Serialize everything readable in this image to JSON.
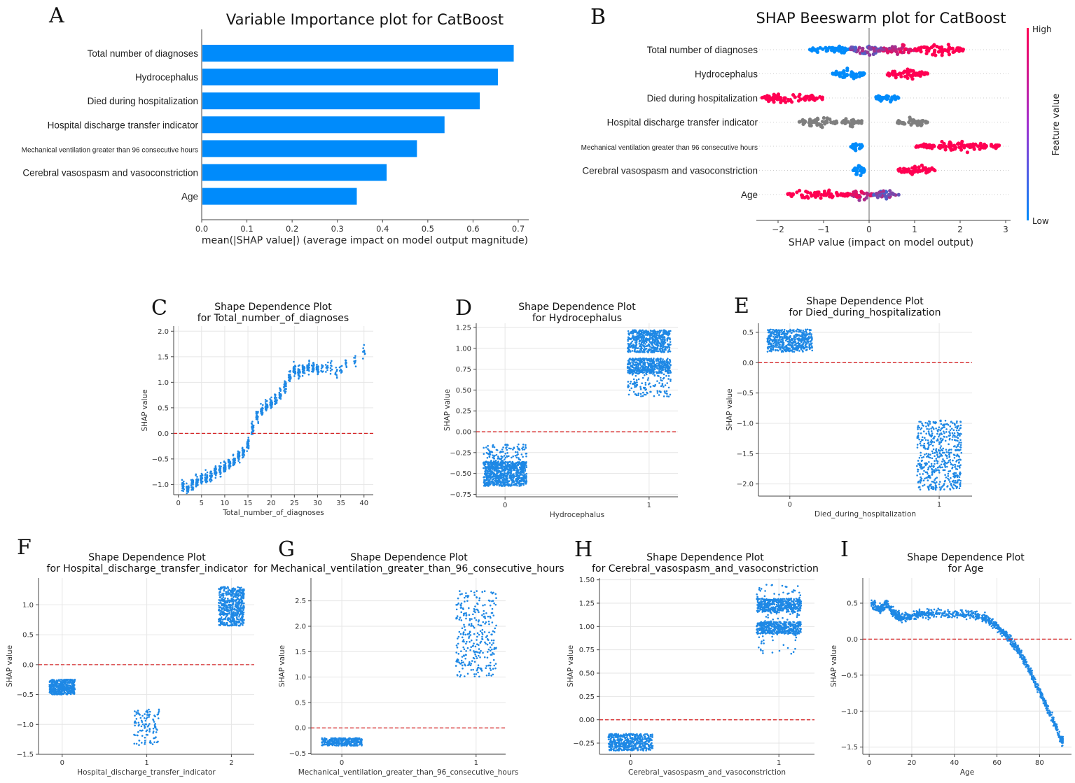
{
  "colors": {
    "bar": "#008bfb",
    "low": "#008bfb",
    "high": "#ff0052",
    "gray": "#7f7f7f",
    "reference_line": "#d62728",
    "points": "#1e88e5"
  },
  "chart_data": [
    {
      "panel": "A",
      "type": "bar",
      "title": "Variable Importance plot for CatBoost",
      "categories": [
        "Total number of diagnoses",
        "Hydrocephalus",
        "Died during hospitalization",
        "Hospital discharge transfer indicator",
        "Mechanical ventilation greater than 96 consecutive hours",
        "Cerebral vasospasm and vasoconstriction",
        "Age"
      ],
      "values": [
        0.69,
        0.655,
        0.615,
        0.537,
        0.476,
        0.409,
        0.343
      ],
      "xlabel": "mean(|SHAP value|) (average impact on model output magnitude)",
      "xlim": [
        0,
        0.72
      ],
      "xticks": [
        "0.0",
        "0.1",
        "0.2",
        "0.3",
        "0.4",
        "0.5",
        "0.6",
        "0.7"
      ]
    },
    {
      "panel": "B",
      "type": "scatter",
      "title": "SHAP Beeswarm plot for CatBoost",
      "xlabel": "SHAP value (impact on model output)",
      "xlim": [
        -2.5,
        3.1
      ],
      "xticks": [
        "−2",
        "−1",
        "0",
        "1",
        "2",
        "3"
      ],
      "colorbar": {
        "label": "Feature value",
        "high": "High",
        "low": "Low"
      },
      "rows": [
        {
          "feature": "Total number of diagnoses",
          "clusters": [
            {
              "range": [
                -1.3,
                -0.45
              ],
              "color": "low"
            },
            {
              "range": [
                -0.45,
                0.3
              ],
              "color": "mixed"
            },
            {
              "range": [
                0.3,
                1.0
              ],
              "color": "mixed-high"
            },
            {
              "range": [
                1.0,
                2.1
              ],
              "color": "high"
            }
          ]
        },
        {
          "feature": "Hydrocephalus",
          "clusters": [
            {
              "range": [
                -0.8,
                -0.1
              ],
              "color": "low"
            },
            {
              "range": [
                0.4,
                1.3
              ],
              "color": "high"
            }
          ]
        },
        {
          "feature": "Died during hospitalization",
          "clusters": [
            {
              "range": [
                -2.4,
                -1.0
              ],
              "color": "high"
            },
            {
              "range": [
                0.15,
                0.65
              ],
              "color": "low"
            }
          ]
        },
        {
          "feature": "Hospital discharge transfer indicator",
          "clusters": [
            {
              "range": [
                -1.55,
                -0.7
              ],
              "color": "gray"
            },
            {
              "range": [
                -0.6,
                -0.15
              ],
              "color": "gray"
            },
            {
              "range": [
                0.6,
                1.3
              ],
              "color": "gray"
            }
          ]
        },
        {
          "feature": "Mechanical ventilation greater than 96 consecutive hours",
          "clusters": [
            {
              "range": [
                -0.4,
                -0.15
              ],
              "color": "low"
            },
            {
              "range": [
                1.0,
                2.9
              ],
              "color": "high"
            }
          ]
        },
        {
          "feature": "Cerebral vasospasm and vasoconstriction",
          "clusters": [
            {
              "range": [
                -0.35,
                -0.1
              ],
              "color": "low"
            },
            {
              "range": [
                0.6,
                1.45
              ],
              "color": "high"
            }
          ]
        },
        {
          "feature": "Age",
          "clusters": [
            {
              "range": [
                -1.8,
                -0.4
              ],
              "color": "high"
            },
            {
              "range": [
                -0.4,
                0.1
              ],
              "color": "mixed-high"
            },
            {
              "range": [
                0.1,
                0.65
              ],
              "color": "mixed"
            }
          ]
        }
      ]
    },
    {
      "panel": "C",
      "type": "scatter",
      "title": [
        "Shape Dependence Plot",
        "for Total_number_of_diagnoses"
      ],
      "xlabel": "Total_number_of_diagnoses",
      "ylabel": "SHAP value",
      "xlim": [
        -1,
        42
      ],
      "ylim": [
        -1.2,
        2.1
      ],
      "xticks": [
        "0",
        "5",
        "10",
        "15",
        "20",
        "25",
        "30",
        "35",
        "40"
      ],
      "yticks": [
        "−1.0",
        "−0.5",
        "0.0",
        "0.5",
        "1.0",
        "1.5",
        "2.0"
      ],
      "reference_line": 0,
      "trend": [
        [
          1,
          -1.05
        ],
        [
          2,
          -1.05
        ],
        [
          3,
          -1.0
        ],
        [
          4,
          -0.95
        ],
        [
          5,
          -0.9
        ],
        [
          6,
          -0.87
        ],
        [
          7,
          -0.83
        ],
        [
          8,
          -0.75
        ],
        [
          9,
          -0.7
        ],
        [
          10,
          -0.65
        ],
        [
          11,
          -0.6
        ],
        [
          12,
          -0.55
        ],
        [
          13,
          -0.48
        ],
        [
          14,
          -0.38
        ],
        [
          15,
          -0.2
        ],
        [
          16,
          0.1
        ],
        [
          17,
          0.32
        ],
        [
          18,
          0.45
        ],
        [
          19,
          0.52
        ],
        [
          20,
          0.6
        ],
        [
          21,
          0.66
        ],
        [
          22,
          0.76
        ],
        [
          23,
          0.92
        ],
        [
          24,
          1.1
        ],
        [
          25,
          1.25
        ],
        [
          26,
          1.2
        ],
        [
          27,
          1.25
        ],
        [
          28,
          1.3
        ],
        [
          29,
          1.3
        ],
        [
          30,
          1.25
        ],
        [
          31,
          1.25
        ],
        [
          32,
          1.3
        ],
        [
          33,
          1.3
        ],
        [
          34,
          1.2
        ],
        [
          35,
          1.25
        ],
        [
          36,
          1.35
        ],
        [
          38,
          1.4
        ],
        [
          40,
          1.6
        ]
      ]
    },
    {
      "panel": "D",
      "type": "scatter",
      "title": [
        "Shape Dependence Plot",
        "for Hydrocephalus"
      ],
      "xlabel": "Hydrocephalus",
      "ylabel": "SHAP value",
      "xlim": [
        -0.2,
        1.2
      ],
      "ylim": [
        -0.78,
        1.3
      ],
      "xticks": [
        "0",
        "1"
      ],
      "yticks": [
        "−0.75",
        "−0.50",
        "−0.25",
        "0.00",
        "0.25",
        "0.50",
        "0.75",
        "1.00",
        "1.25"
      ],
      "reference_line": 0,
      "clusters": [
        {
          "x": 0,
          "y": [
            -0.65,
            -0.45
          ],
          "density": "high"
        },
        {
          "x": 0,
          "y": [
            -0.45,
            -0.36
          ],
          "density": "high"
        },
        {
          "x": 0,
          "y": [
            -0.36,
            -0.15
          ],
          "density": "low"
        },
        {
          "x": 1,
          "y": [
            0.95,
            1.22
          ],
          "density": "high"
        },
        {
          "x": 1,
          "y": [
            0.7,
            0.88
          ],
          "density": "high"
        },
        {
          "x": 1,
          "y": [
            0.42,
            0.7
          ],
          "density": "low"
        }
      ]
    },
    {
      "panel": "E",
      "type": "scatter",
      "title": [
        "Shape Dependence Plot",
        "for Died_during_hospitalization"
      ],
      "xlabel": "Died_during_hospitalization",
      "ylabel": "SHAP value",
      "xlim": [
        -0.21,
        1.22
      ],
      "ylim": [
        -2.2,
        0.65
      ],
      "xticks": [
        "0",
        "1"
      ],
      "yticks": [
        "−2.0",
        "−1.5",
        "−1.0",
        "−0.5",
        "0.0",
        "0.5"
      ],
      "reference_line": 0,
      "clusters": [
        {
          "x": 0,
          "y": [
            0.18,
            0.55
          ],
          "density": "high"
        },
        {
          "x": 1,
          "y": [
            -2.1,
            -0.95
          ],
          "density": "high"
        }
      ]
    },
    {
      "panel": "F",
      "type": "scatter",
      "title": [
        "Shape Dependence Plot",
        "for Hospital_discharge_transfer_indicator"
      ],
      "xlabel": "Hospital_discharge_transfer_indicator",
      "ylabel": "SHAP value",
      "xlim": [
        -0.28,
        2.27
      ],
      "ylim": [
        -1.5,
        1.45
      ],
      "xticks": [
        "0",
        "1",
        "2"
      ],
      "yticks": [
        "−1.5",
        "−1.0",
        "−0.5",
        "0.0",
        "0.5",
        "1.0"
      ],
      "reference_line": 0,
      "clusters": [
        {
          "x": 0,
          "y": [
            -0.5,
            -0.25
          ],
          "density": "high"
        },
        {
          "x": 1,
          "y": [
            -1.35,
            -0.75
          ],
          "density": "low"
        },
        {
          "x": 2,
          "y": [
            0.65,
            1.3
          ],
          "density": "high"
        }
      ]
    },
    {
      "panel": "G",
      "type": "scatter",
      "title": [
        "Shape Dependence Plot",
        "for Mechanical_ventilation_greater_than_96_consecutive_hours"
      ],
      "xlabel": "Mechanical_ventilation_greater_than_96_consecutive_hours",
      "ylabel": "SHAP value",
      "xlim": [
        -0.23,
        1.22
      ],
      "ylim": [
        -0.52,
        2.95
      ],
      "xticks": [
        "0",
        "1"
      ],
      "yticks": [
        "−0.5",
        "0.0",
        "0.5",
        "1.0",
        "1.5",
        "2.0",
        "2.5"
      ],
      "reference_line": 0,
      "clusters": [
        {
          "x": 0,
          "y": [
            -0.35,
            -0.2
          ],
          "density": "high"
        },
        {
          "x": 1,
          "y": [
            1.0,
            2.7
          ],
          "density": "medium"
        }
      ]
    },
    {
      "panel": "H",
      "type": "scatter",
      "title": [
        "Shape Dependence Plot",
        "for Cerebral_vasospasm_and_vasoconstriction"
      ],
      "xlabel": "Cerebral_vasospasm_and_vasoconstriction",
      "ylabel": "SHAP value",
      "xlim": [
        -0.21,
        1.24
      ],
      "ylim": [
        -0.37,
        1.52
      ],
      "xticks": [
        "0",
        "1"
      ],
      "yticks": [
        "−0.25",
        "0.00",
        "0.25",
        "0.50",
        "0.75",
        "1.00",
        "1.25",
        "1.50"
      ],
      "reference_line": 0,
      "clusters": [
        {
          "x": 0,
          "y": [
            -0.33,
            -0.15
          ],
          "density": "high"
        },
        {
          "x": 1,
          "y": [
            1.15,
            1.3
          ],
          "density": "high"
        },
        {
          "x": 1,
          "y": [
            0.92,
            1.05
          ],
          "density": "high"
        },
        {
          "x": 1,
          "y": [
            0.7,
            1.45
          ],
          "density": "low"
        }
      ]
    },
    {
      "panel": "I",
      "type": "scatter",
      "title": [
        "Shape Dependence Plot",
        "for Age"
      ],
      "xlabel": "Age",
      "ylabel": "SHAP value",
      "xlim": [
        -3,
        95
      ],
      "ylim": [
        -1.6,
        0.85
      ],
      "xticks": [
        "0",
        "20",
        "40",
        "60",
        "80"
      ],
      "yticks": [
        "−1.5",
        "−1.0",
        "−0.5",
        "0.0",
        "0.5"
      ],
      "reference_line": 0,
      "trend": [
        [
          1,
          0.5
        ],
        [
          5,
          0.42
        ],
        [
          8,
          0.5
        ],
        [
          12,
          0.35
        ],
        [
          15,
          0.3
        ],
        [
          20,
          0.32
        ],
        [
          25,
          0.35
        ],
        [
          30,
          0.36
        ],
        [
          40,
          0.35
        ],
        [
          48,
          0.34
        ],
        [
          54,
          0.3
        ],
        [
          58,
          0.22
        ],
        [
          62,
          0.12
        ],
        [
          66,
          0.0
        ],
        [
          70,
          -0.15
        ],
        [
          74,
          -0.35
        ],
        [
          78,
          -0.6
        ],
        [
          82,
          -0.85
        ],
        [
          86,
          -1.1
        ],
        [
          90,
          -1.4
        ]
      ]
    }
  ]
}
